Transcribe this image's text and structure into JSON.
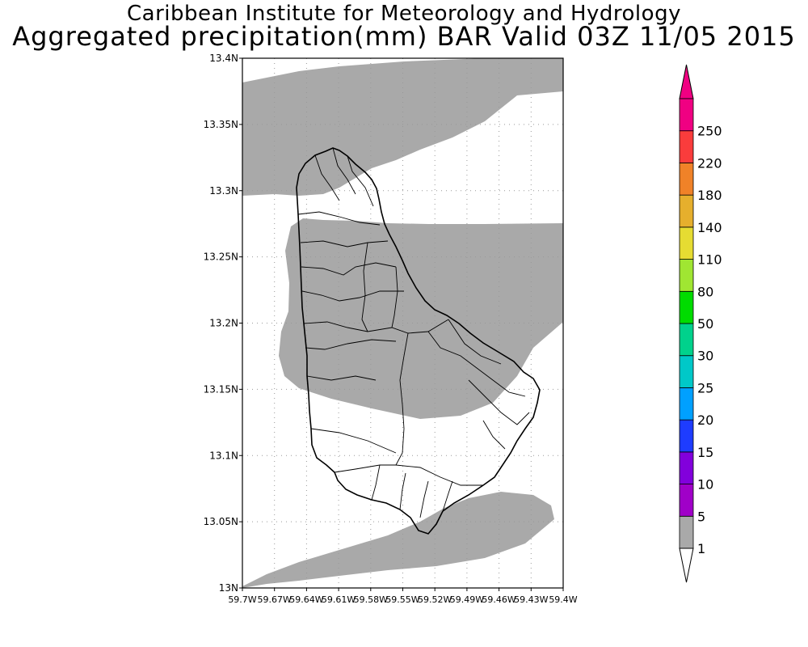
{
  "title": {
    "line1": "Caribbean Institute for Meteorology and Hydrology",
    "line2": "Aggregated precipitation(mm) BAR Valid 03Z 11/05 2015"
  },
  "map": {
    "lat_labels": [
      "13.4N",
      "13.35N",
      "13.3N",
      "13.25N",
      "13.2N",
      "13.15N",
      "13.1N",
      "13.05N",
      "13N"
    ],
    "lon_labels": [
      "59.7W",
      "59.67W",
      "59.64W",
      "59.61W",
      "59.58W",
      "59.55W",
      "59.52W",
      "59.49W",
      "59.46W",
      "59.43W",
      "59.4W"
    ],
    "lat_range": [
      13.0,
      13.4
    ],
    "lon_range": [
      -59.7,
      -59.4
    ],
    "grid": true,
    "precip_fill_color": "#a9a9a9",
    "precip_fill_class": "1-5 mm"
  },
  "colorbar": {
    "levels": [
      "1",
      "5",
      "10",
      "15",
      "20",
      "25",
      "30",
      "50",
      "80",
      "110",
      "140",
      "180",
      "220",
      "250"
    ],
    "colors": [
      "#a9a9a9",
      "#a000c8",
      "#8200dc",
      "#1e3cff",
      "#00a0ff",
      "#00c8c8",
      "#00d28c",
      "#00dc00",
      "#a0e632",
      "#e6dc32",
      "#e6af2d",
      "#f08228",
      "#fa3c3c",
      "#f00082"
    ],
    "low_arrow_color": "#ffffff"
  }
}
